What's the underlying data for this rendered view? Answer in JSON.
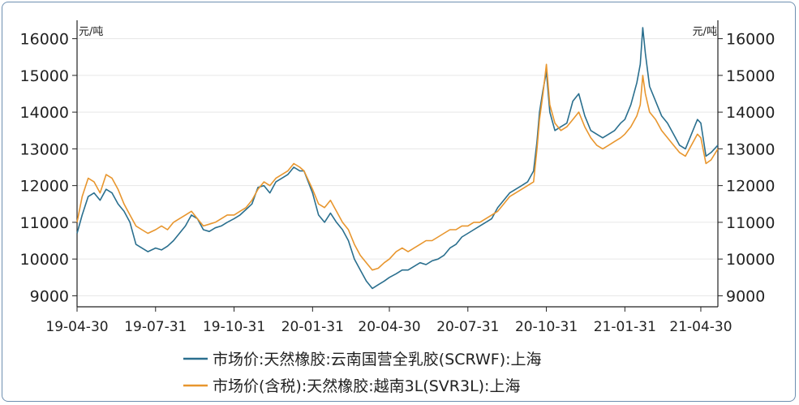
{
  "chart_data": {
    "type": "line",
    "y_unit_left": "元/吨",
    "y_unit_right": "元/吨",
    "ylim": [
      8700,
      16500
    ],
    "yticks": [
      9000,
      10000,
      11000,
      12000,
      13000,
      14000,
      15000,
      16000
    ],
    "xlim": [
      "2019-04-30",
      "2021-05-20"
    ],
    "xticks": [
      {
        "date": "2019-04-30",
        "label": "19-04-30"
      },
      {
        "date": "2019-07-31",
        "label": "19-07-31"
      },
      {
        "date": "2019-10-31",
        "label": "19-10-31"
      },
      {
        "date": "2020-01-31",
        "label": "20-01-31"
      },
      {
        "date": "2020-04-30",
        "label": "20-04-30"
      },
      {
        "date": "2020-07-31",
        "label": "20-07-31"
      },
      {
        "date": "2020-10-31",
        "label": "20-10-31"
      },
      {
        "date": "2021-01-31",
        "label": "21-01-31"
      },
      {
        "date": "2021-04-30",
        "label": "21-04-30"
      }
    ],
    "grid": true,
    "legend_position": "bottom",
    "series": [
      {
        "name": "市场价:天然橡胶:云南国营全乳胶(SCRWF):上海",
        "color": "#2a6f8e",
        "points": [
          [
            "2019-04-30",
            10700
          ],
          [
            "2019-05-06",
            11200
          ],
          [
            "2019-05-13",
            11700
          ],
          [
            "2019-05-20",
            11800
          ],
          [
            "2019-05-27",
            11600
          ],
          [
            "2019-06-03",
            11900
          ],
          [
            "2019-06-10",
            11800
          ],
          [
            "2019-06-17",
            11500
          ],
          [
            "2019-06-24",
            11300
          ],
          [
            "2019-07-01",
            11000
          ],
          [
            "2019-07-08",
            10400
          ],
          [
            "2019-07-15",
            10300
          ],
          [
            "2019-07-22",
            10200
          ],
          [
            "2019-07-31",
            10300
          ],
          [
            "2019-08-07",
            10250
          ],
          [
            "2019-08-14",
            10350
          ],
          [
            "2019-08-21",
            10500
          ],
          [
            "2019-08-28",
            10700
          ],
          [
            "2019-09-04",
            10900
          ],
          [
            "2019-09-11",
            11200
          ],
          [
            "2019-09-18",
            11100
          ],
          [
            "2019-09-25",
            10800
          ],
          [
            "2019-10-02",
            10750
          ],
          [
            "2019-10-09",
            10850
          ],
          [
            "2019-10-16",
            10900
          ],
          [
            "2019-10-23",
            11000
          ],
          [
            "2019-10-31",
            11100
          ],
          [
            "2019-11-07",
            11200
          ],
          [
            "2019-11-14",
            11350
          ],
          [
            "2019-11-21",
            11500
          ],
          [
            "2019-11-28",
            11950
          ],
          [
            "2019-12-05",
            12000
          ],
          [
            "2019-12-12",
            11800
          ],
          [
            "2019-12-19",
            12100
          ],
          [
            "2019-12-26",
            12200
          ],
          [
            "2020-01-02",
            12300
          ],
          [
            "2020-01-09",
            12500
          ],
          [
            "2020-01-16",
            12400
          ],
          [
            "2020-01-21",
            12400
          ],
          [
            "2020-01-31",
            11800
          ],
          [
            "2020-02-07",
            11200
          ],
          [
            "2020-02-14",
            11000
          ],
          [
            "2020-02-21",
            11250
          ],
          [
            "2020-02-28",
            11000
          ],
          [
            "2020-03-06",
            10800
          ],
          [
            "2020-03-13",
            10500
          ],
          [
            "2020-03-20",
            10000
          ],
          [
            "2020-03-27",
            9700
          ],
          [
            "2020-04-03",
            9400
          ],
          [
            "2020-04-10",
            9200
          ],
          [
            "2020-04-17",
            9300
          ],
          [
            "2020-04-24",
            9400
          ],
          [
            "2020-04-30",
            9500
          ],
          [
            "2020-05-08",
            9600
          ],
          [
            "2020-05-15",
            9700
          ],
          [
            "2020-05-22",
            9700
          ],
          [
            "2020-05-29",
            9800
          ],
          [
            "2020-06-05",
            9900
          ],
          [
            "2020-06-12",
            9850
          ],
          [
            "2020-06-19",
            9950
          ],
          [
            "2020-06-26",
            10000
          ],
          [
            "2020-07-03",
            10100
          ],
          [
            "2020-07-10",
            10300
          ],
          [
            "2020-07-17",
            10400
          ],
          [
            "2020-07-24",
            10600
          ],
          [
            "2020-07-31",
            10700
          ],
          [
            "2020-08-07",
            10800
          ],
          [
            "2020-08-14",
            10900
          ],
          [
            "2020-08-21",
            11000
          ],
          [
            "2020-08-28",
            11100
          ],
          [
            "2020-09-04",
            11400
          ],
          [
            "2020-09-11",
            11600
          ],
          [
            "2020-09-18",
            11800
          ],
          [
            "2020-09-25",
            11900
          ],
          [
            "2020-10-02",
            12000
          ],
          [
            "2020-10-09",
            12100
          ],
          [
            "2020-10-16",
            12400
          ],
          [
            "2020-10-20",
            13200
          ],
          [
            "2020-10-23",
            14000
          ],
          [
            "2020-10-27",
            14600
          ],
          [
            "2020-10-31",
            15100
          ],
          [
            "2020-11-04",
            14000
          ],
          [
            "2020-11-10",
            13500
          ],
          [
            "2020-11-17",
            13600
          ],
          [
            "2020-11-24",
            13700
          ],
          [
            "2020-12-01",
            14300
          ],
          [
            "2020-12-08",
            14500
          ],
          [
            "2020-12-15",
            13900
          ],
          [
            "2020-12-22",
            13500
          ],
          [
            "2020-12-29",
            13400
          ],
          [
            "2021-01-05",
            13300
          ],
          [
            "2021-01-12",
            13400
          ],
          [
            "2021-01-19",
            13500
          ],
          [
            "2021-01-26",
            13700
          ],
          [
            "2021-01-31",
            13800
          ],
          [
            "2021-02-07",
            14200
          ],
          [
            "2021-02-14",
            14800
          ],
          [
            "2021-02-18",
            15300
          ],
          [
            "2021-02-21",
            16300
          ],
          [
            "2021-02-24",
            15600
          ],
          [
            "2021-03-01",
            14700
          ],
          [
            "2021-03-08",
            14300
          ],
          [
            "2021-03-15",
            13900
          ],
          [
            "2021-03-22",
            13700
          ],
          [
            "2021-03-29",
            13400
          ],
          [
            "2021-04-05",
            13100
          ],
          [
            "2021-04-12",
            13000
          ],
          [
            "2021-04-19",
            13400
          ],
          [
            "2021-04-26",
            13800
          ],
          [
            "2021-04-30",
            13700
          ],
          [
            "2021-05-06",
            12800
          ],
          [
            "2021-05-12",
            12900
          ],
          [
            "2021-05-20",
            13100
          ]
        ]
      },
      {
        "name": "市场价(含税):天然橡胶:越南3L(SVR3L):上海",
        "color": "#e8962e",
        "points": [
          [
            "2019-04-30",
            11000
          ],
          [
            "2019-05-06",
            11700
          ],
          [
            "2019-05-13",
            12200
          ],
          [
            "2019-05-20",
            12100
          ],
          [
            "2019-05-27",
            11800
          ],
          [
            "2019-06-03",
            12300
          ],
          [
            "2019-06-10",
            12200
          ],
          [
            "2019-06-17",
            11900
          ],
          [
            "2019-06-24",
            11500
          ],
          [
            "2019-07-01",
            11200
          ],
          [
            "2019-07-08",
            10900
          ],
          [
            "2019-07-15",
            10800
          ],
          [
            "2019-07-22",
            10700
          ],
          [
            "2019-07-31",
            10800
          ],
          [
            "2019-08-07",
            10900
          ],
          [
            "2019-08-14",
            10800
          ],
          [
            "2019-08-21",
            11000
          ],
          [
            "2019-08-28",
            11100
          ],
          [
            "2019-09-04",
            11200
          ],
          [
            "2019-09-11",
            11300
          ],
          [
            "2019-09-18",
            11100
          ],
          [
            "2019-09-25",
            10900
          ],
          [
            "2019-10-02",
            10950
          ],
          [
            "2019-10-09",
            11000
          ],
          [
            "2019-10-16",
            11100
          ],
          [
            "2019-10-23",
            11200
          ],
          [
            "2019-10-31",
            11200
          ],
          [
            "2019-11-07",
            11300
          ],
          [
            "2019-11-14",
            11400
          ],
          [
            "2019-11-21",
            11600
          ],
          [
            "2019-11-28",
            11900
          ],
          [
            "2019-12-05",
            12100
          ],
          [
            "2019-12-12",
            12000
          ],
          [
            "2019-12-19",
            12200
          ],
          [
            "2019-12-26",
            12300
          ],
          [
            "2020-01-02",
            12400
          ],
          [
            "2020-01-09",
            12600
          ],
          [
            "2020-01-16",
            12500
          ],
          [
            "2020-01-21",
            12400
          ],
          [
            "2020-01-31",
            11900
          ],
          [
            "2020-02-07",
            11500
          ],
          [
            "2020-02-14",
            11400
          ],
          [
            "2020-02-21",
            11600
          ],
          [
            "2020-02-28",
            11300
          ],
          [
            "2020-03-06",
            11000
          ],
          [
            "2020-03-13",
            10800
          ],
          [
            "2020-03-20",
            10400
          ],
          [
            "2020-03-27",
            10100
          ],
          [
            "2020-04-03",
            9900
          ],
          [
            "2020-04-10",
            9700
          ],
          [
            "2020-04-17",
            9750
          ],
          [
            "2020-04-24",
            9900
          ],
          [
            "2020-04-30",
            10000
          ],
          [
            "2020-05-08",
            10200
          ],
          [
            "2020-05-15",
            10300
          ],
          [
            "2020-05-22",
            10200
          ],
          [
            "2020-05-29",
            10300
          ],
          [
            "2020-06-05",
            10400
          ],
          [
            "2020-06-12",
            10500
          ],
          [
            "2020-06-19",
            10500
          ],
          [
            "2020-06-26",
            10600
          ],
          [
            "2020-07-03",
            10700
          ],
          [
            "2020-07-10",
            10800
          ],
          [
            "2020-07-17",
            10800
          ],
          [
            "2020-07-24",
            10900
          ],
          [
            "2020-07-31",
            10900
          ],
          [
            "2020-08-07",
            11000
          ],
          [
            "2020-08-14",
            11000
          ],
          [
            "2020-08-21",
            11100
          ],
          [
            "2020-08-28",
            11200
          ],
          [
            "2020-09-04",
            11300
          ],
          [
            "2020-09-11",
            11500
          ],
          [
            "2020-09-18",
            11700
          ],
          [
            "2020-09-25",
            11800
          ],
          [
            "2020-10-02",
            11900
          ],
          [
            "2020-10-09",
            12000
          ],
          [
            "2020-10-16",
            12100
          ],
          [
            "2020-10-20",
            13000
          ],
          [
            "2020-10-23",
            13800
          ],
          [
            "2020-10-27",
            14500
          ],
          [
            "2020-10-31",
            15300
          ],
          [
            "2020-11-04",
            14200
          ],
          [
            "2020-11-10",
            13700
          ],
          [
            "2020-11-17",
            13500
          ],
          [
            "2020-11-24",
            13600
          ],
          [
            "2020-12-01",
            13800
          ],
          [
            "2020-12-08",
            14000
          ],
          [
            "2020-12-15",
            13600
          ],
          [
            "2020-12-22",
            13300
          ],
          [
            "2020-12-29",
            13100
          ],
          [
            "2021-01-05",
            13000
          ],
          [
            "2021-01-12",
            13100
          ],
          [
            "2021-01-19",
            13200
          ],
          [
            "2021-01-26",
            13300
          ],
          [
            "2021-01-31",
            13400
          ],
          [
            "2021-02-07",
            13600
          ],
          [
            "2021-02-14",
            13900
          ],
          [
            "2021-02-18",
            14200
          ],
          [
            "2021-02-21",
            15000
          ],
          [
            "2021-02-24",
            14500
          ],
          [
            "2021-03-01",
            14000
          ],
          [
            "2021-03-08",
            13800
          ],
          [
            "2021-03-15",
            13500
          ],
          [
            "2021-03-22",
            13300
          ],
          [
            "2021-03-29",
            13100
          ],
          [
            "2021-04-05",
            12900
          ],
          [
            "2021-04-12",
            12800
          ],
          [
            "2021-04-19",
            13100
          ],
          [
            "2021-04-26",
            13400
          ],
          [
            "2021-04-30",
            13300
          ],
          [
            "2021-05-06",
            12600
          ],
          [
            "2021-05-12",
            12700
          ],
          [
            "2021-05-20",
            13000
          ]
        ]
      }
    ]
  }
}
